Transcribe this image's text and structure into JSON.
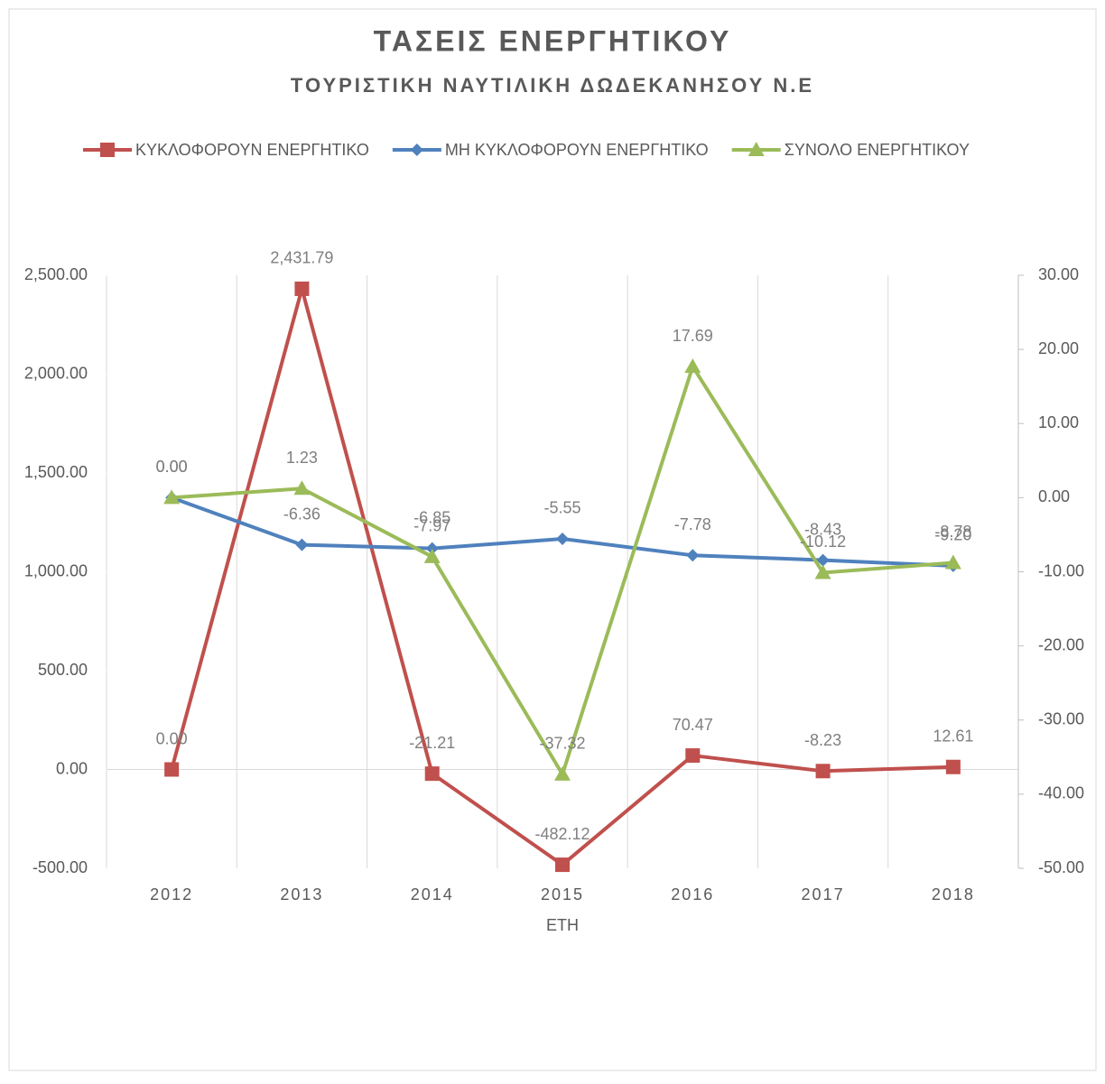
{
  "chart_data": {
    "type": "line",
    "title": "ΤΑΣΕΙΣ ΕΝΕΡΓΗΤΙΚΟΥ",
    "subtitle": "ΤΟΥΡΙΣΤΙΚΗ ΝΑΥΤΙΛΙΚΗ ΔΩΔΕΚΑΝΗΣΟΥ Ν.Ε",
    "x_label": "ΕΤΗ",
    "categories": [
      "2012",
      "2013",
      "2014",
      "2015",
      "2016",
      "2017",
      "2018"
    ],
    "series": [
      {
        "name": "ΚΥΚΛΟΦΟΡΟΥΝ ΕΝΕΡΓΗΤΙΚΟ",
        "color": "#c0504d",
        "marker": "square",
        "axis": "y",
        "values": [
          0,
          2431.79,
          -21.21,
          -482.12,
          70.47,
          -8.23,
          12.61
        ],
        "value_labels": [
          "0.00",
          "2,431.79",
          "-21.21",
          "-482.12",
          "70.47",
          "-8.23",
          "12.61"
        ]
      },
      {
        "name": "ΜΗ ΚΥΚΛΟΦΟΡΟΥΝ ΕΝΕΡΓΗΤΙΚΟ",
        "color": "#4f81bd",
        "marker": "diamond",
        "axis": "y2",
        "values": [
          0,
          -6.36,
          -6.85,
          -5.55,
          -7.78,
          -8.43,
          -9.2
        ],
        "value_labels": [
          "0.00",
          "-6.36",
          "-6.85",
          "-5.55",
          "-7.78",
          "-8.43",
          "-9.20"
        ]
      },
      {
        "name": "ΣΥΝΟΛΟ ΕΝΕΡΓΗΤΙΚΟΥ",
        "color": "#9bbb59",
        "marker": "triangle",
        "axis": "y2",
        "values": [
          0,
          1.23,
          -7.97,
          -37.32,
          17.69,
          -10.12,
          -8.78
        ],
        "value_labels": [
          "0.00",
          "1.23",
          "-7.97",
          "-37.32",
          "17.69",
          "-10.12",
          "-8.78"
        ]
      }
    ],
    "ylim": [
      -500,
      2500
    ],
    "yticks": [
      {
        "value": -500,
        "label": "-500.00"
      },
      {
        "value": 0,
        "label": "0.00"
      },
      {
        "value": 500,
        "label": "500.00"
      },
      {
        "value": 1000,
        "label": "1,000.00"
      },
      {
        "value": 1500,
        "label": "1,500.00"
      },
      {
        "value": 2000,
        "label": "2,000.00"
      },
      {
        "value": 2500,
        "label": "2,500.00"
      }
    ],
    "y2lim": [
      -50,
      30
    ],
    "y2ticks": [
      {
        "value": -50,
        "label": "-50.00"
      },
      {
        "value": -40,
        "label": "-40.00"
      },
      {
        "value": -30,
        "label": "-30.00"
      },
      {
        "value": -20,
        "label": "-20.00"
      },
      {
        "value": -10,
        "label": "-10.00"
      },
      {
        "value": 0,
        "label": "0.00"
      },
      {
        "value": 10,
        "label": "10.00"
      },
      {
        "value": 20,
        "label": "20.00"
      },
      {
        "value": 30,
        "label": "30.00"
      }
    ],
    "legend": "top"
  }
}
